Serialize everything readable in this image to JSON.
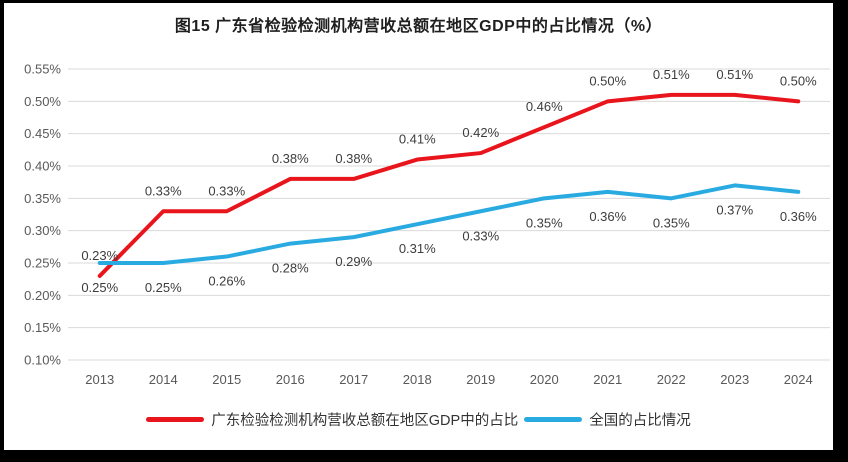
{
  "frame": {
    "border_color": "#000000",
    "card_background": "#ffffff"
  },
  "chart_data": {
    "type": "line",
    "title": "图15  广东省检验检测机构营收总额在地区GDP中的占比情况（%）",
    "categories": [
      "2013",
      "2014",
      "2015",
      "2016",
      "2017",
      "2018",
      "2019",
      "2020",
      "2021",
      "2022",
      "2023",
      "2024"
    ],
    "y_ticks": [
      "0.55%",
      "0.50%",
      "0.45%",
      "0.40%",
      "0.35%",
      "0.30%",
      "0.25%",
      "0.20%",
      "0.15%",
      "0.10%"
    ],
    "ylim": [
      0.1,
      0.55
    ],
    "y_tick_step": 0.05,
    "grid": true,
    "legend_position": "bottom",
    "xlabel": "",
    "ylabel": "",
    "series": [
      {
        "name": "广东检验检测机构营收总额在地区GDP中的占比",
        "color": "#e8151c",
        "label_position": "above",
        "values": [
          0.23,
          0.33,
          0.33,
          0.38,
          0.38,
          0.41,
          0.42,
          0.46,
          0.5,
          0.51,
          0.51,
          0.5
        ],
        "labels": [
          "0.23%",
          "0.33%",
          "0.33%",
          "0.38%",
          "0.38%",
          "0.41%",
          "0.42%",
          "0.46%",
          "0.50%",
          "0.51%",
          "0.51%",
          "0.50%"
        ]
      },
      {
        "name": "全国的占比情况",
        "color": "#29abe2",
        "label_position": "below",
        "values": [
          0.25,
          0.25,
          0.26,
          0.28,
          0.29,
          0.31,
          0.33,
          0.35,
          0.36,
          0.35,
          0.37,
          0.36
        ],
        "labels": [
          "0.25%",
          "0.25%",
          "0.26%",
          "0.28%",
          "0.29%",
          "0.31%",
          "0.33%",
          "0.35%",
          "0.36%",
          "0.35%",
          "0.37%",
          "0.36%"
        ]
      }
    ],
    "colors": {
      "gridline": "#d9d9d9",
      "tick_label": "#595959",
      "data_label": "#3d3d3d",
      "title": "#1f1f1f"
    }
  }
}
